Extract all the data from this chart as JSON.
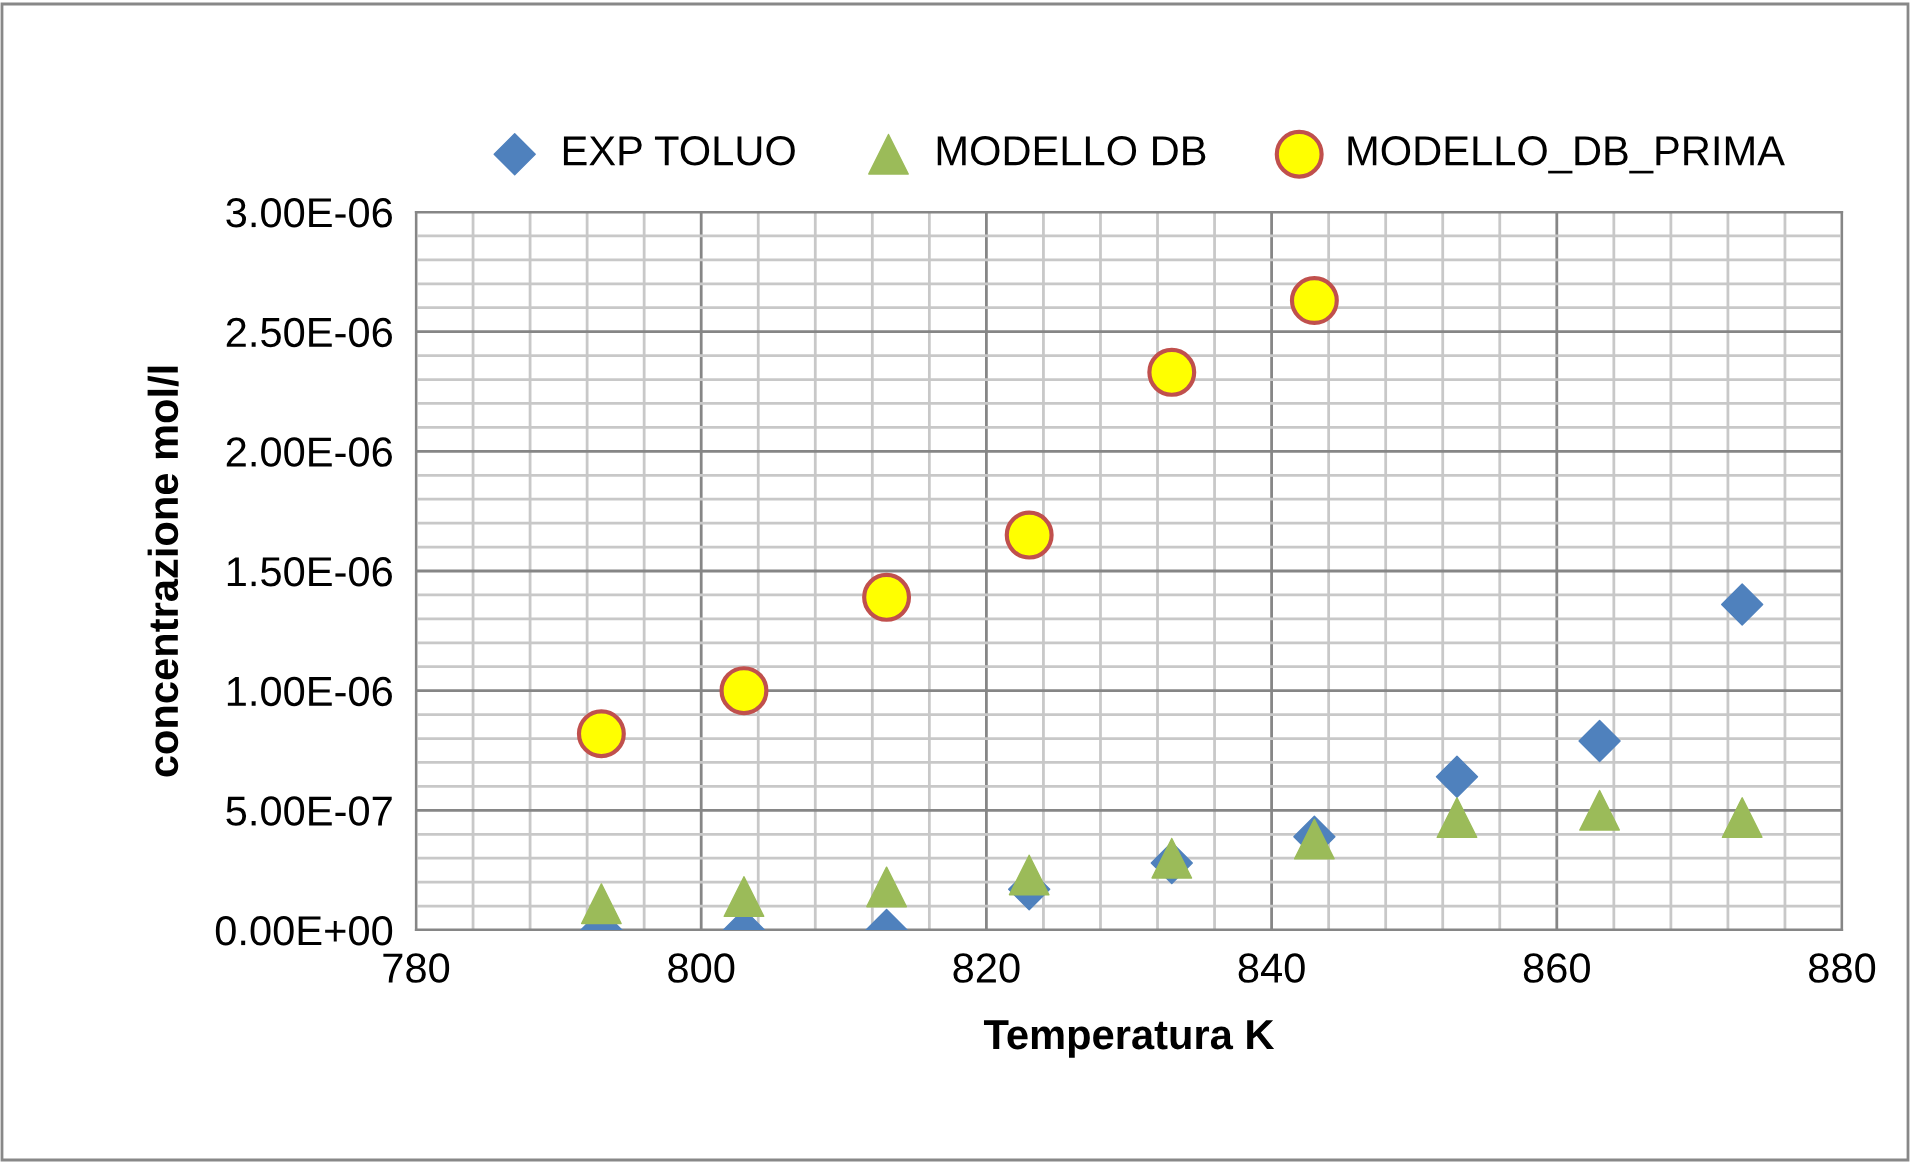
{
  "chart_data": {
    "type": "scatter",
    "xlabel": "Temperatura K",
    "ylabel": "concentrazione mol/l",
    "x": [
      793,
      803,
      813,
      823,
      833,
      843,
      853,
      863,
      873
    ],
    "series": [
      {
        "name": "EXP TOLUO",
        "color": "#4f81bd",
        "marker": "diamond",
        "values": [
          0,
          0,
          0,
          1.7e-07,
          2.8e-07,
          3.9e-07,
          6.4e-07,
          7.9e-07,
          1.36e-06
        ]
      },
      {
        "name": "MODELLO DB",
        "color": "#9bbb59",
        "marker": "triangle",
        "values": [
          1.1e-07,
          1.4e-07,
          1.8e-07,
          2.3e-07,
          3e-07,
          3.8e-07,
          4.7e-07,
          5e-07,
          4.7e-07
        ]
      },
      {
        "name": "MODELLO_DB_PRIMA",
        "color": "#ffff00",
        "marker": "circle",
        "values": [
          8.2e-07,
          1e-06,
          1.39e-06,
          1.65e-06,
          2.33e-06,
          2.63e-06,
          null,
          null,
          null
        ]
      }
    ],
    "xlim": [
      780,
      880
    ],
    "xticks": [
      780,
      800,
      820,
      840,
      860,
      880
    ],
    "ylim": [
      0,
      3e-06
    ],
    "yticks": [
      {
        "value": 0,
        "label": "0.00E+00"
      },
      {
        "value": 5e-07,
        "label": "5.00E-07"
      },
      {
        "value": 1e-06,
        "label": "1.00E-06"
      },
      {
        "value": 1.5e-06,
        "label": "1.50E-06"
      },
      {
        "value": 2e-06,
        "label": "2.00E-06"
      },
      {
        "value": 2.5e-06,
        "label": "2.50E-06"
      },
      {
        "value": 3e-06,
        "label": "3.00E-06"
      }
    ],
    "grid": true,
    "legend": "top"
  }
}
